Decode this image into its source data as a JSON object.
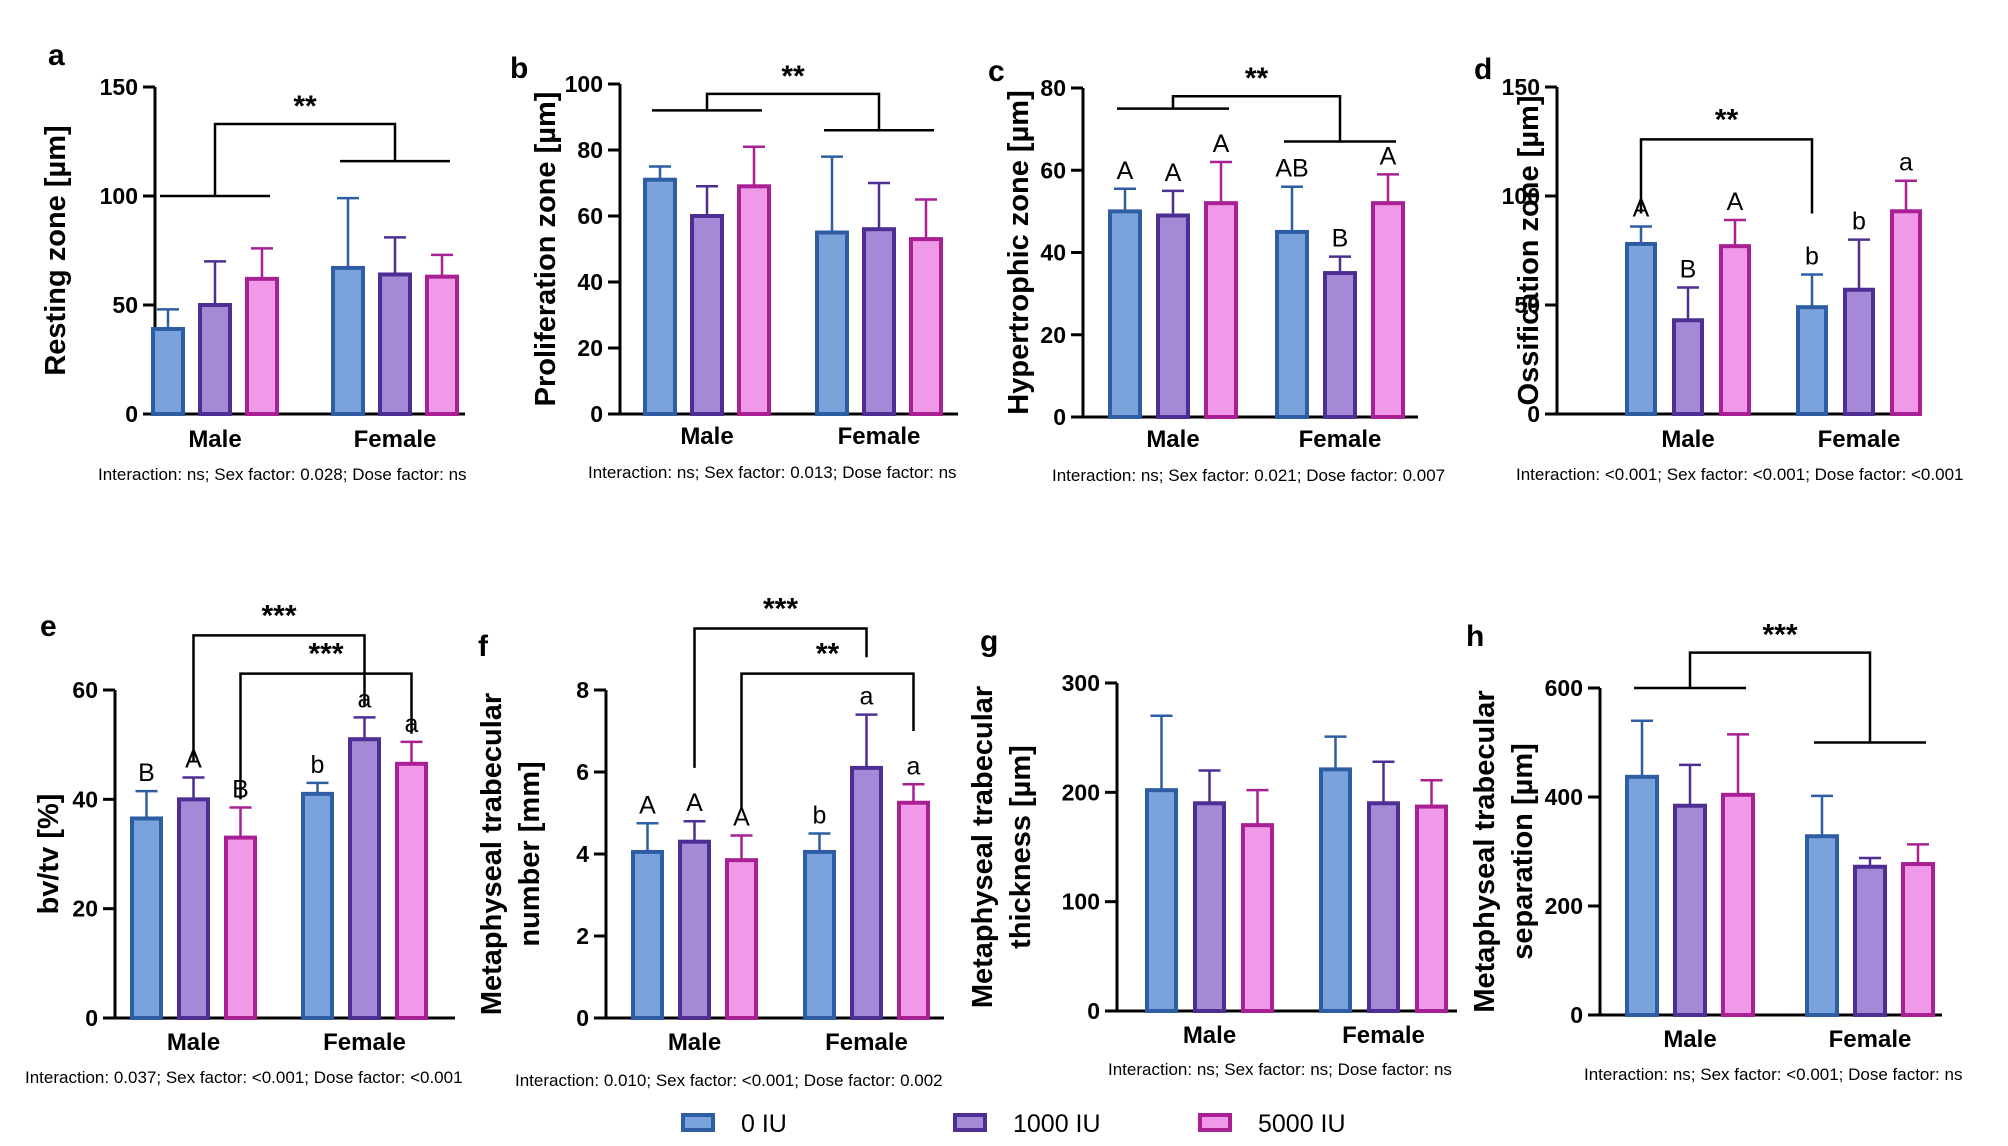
{
  "legend": [
    {
      "label": "0 IU",
      "fill": "#7ba3db",
      "stroke": "#2e5da3"
    },
    {
      "label": "1000 IU",
      "fill": "#a48ad6",
      "stroke": "#4f2e94"
    },
    {
      "label": "5000 IU",
      "fill": "#ef99e8",
      "stroke": "#a82093"
    }
  ],
  "chart_data": [
    {
      "panel": "a",
      "type": "bar",
      "ylabel": "Resting zone [µm]",
      "ylim": [
        0,
        150
      ],
      "yticks": [
        0,
        50,
        100,
        150
      ],
      "categories": [
        "Male",
        "Female"
      ],
      "series": [
        {
          "name": "0 IU",
          "values": [
            39,
            67
          ],
          "errors": [
            9,
            32
          ]
        },
        {
          "name": "1000 IU",
          "values": [
            50,
            64
          ],
          "errors": [
            20,
            17
          ]
        },
        {
          "name": "5000 IU",
          "values": [
            62,
            63
          ],
          "errors": [
            14,
            10
          ]
        }
      ],
      "letters": [
        [
          "",
          "",
          ""
        ],
        [
          "",
          "",
          ""
        ]
      ],
      "significance": [
        {
          "label": "**",
          "type": "groups",
          "y1": 100,
          "y2": 116,
          "top": 133
        }
      ],
      "footnote": "Interaction: ns; Sex factor: 0.028; Dose factor: ns"
    },
    {
      "panel": "b",
      "type": "bar",
      "ylabel": "Proliferation zone [µm]",
      "ylim": [
        0,
        100
      ],
      "yticks": [
        0,
        20,
        40,
        60,
        80,
        100
      ],
      "categories": [
        "Male",
        "Female"
      ],
      "series": [
        {
          "name": "0 IU",
          "values": [
            71,
            55
          ],
          "errors": [
            4,
            23
          ]
        },
        {
          "name": "1000 IU",
          "values": [
            60,
            56
          ],
          "errors": [
            9,
            14
          ]
        },
        {
          "name": "5000 IU",
          "values": [
            69,
            53
          ],
          "errors": [
            12,
            12
          ]
        }
      ],
      "letters": [
        [
          "",
          "",
          ""
        ],
        [
          "",
          "",
          ""
        ]
      ],
      "significance": [
        {
          "label": "**",
          "type": "groups",
          "y1": 92,
          "y2": 86,
          "top": 97
        }
      ],
      "footnote": "Interaction: ns; Sex factor: 0.013; Dose factor: ns"
    },
    {
      "panel": "c",
      "type": "bar",
      "ylabel": "Hypertrophic zone [µm]",
      "ylim": [
        0,
        80
      ],
      "yticks": [
        0,
        20,
        40,
        60,
        80
      ],
      "categories": [
        "Male",
        "Female"
      ],
      "series": [
        {
          "name": "0 IU",
          "values": [
            50,
            45
          ],
          "errors": [
            5.5,
            11
          ]
        },
        {
          "name": "1000 IU",
          "values": [
            49,
            35
          ],
          "errors": [
            6,
            4
          ]
        },
        {
          "name": "5000 IU",
          "values": [
            52,
            52
          ],
          "errors": [
            10,
            7
          ]
        }
      ],
      "letters": [
        [
          "A",
          "A",
          "A"
        ],
        [
          "AB",
          "B",
          "A"
        ]
      ],
      "significance": [
        {
          "label": "**",
          "type": "groups",
          "y1": 75,
          "y2": 67,
          "top": 78
        }
      ],
      "footnote": "Interaction: ns; Sex factor: 0.021; Dose factor: 0.007"
    },
    {
      "panel": "d",
      "type": "bar",
      "ylabel": "Ossification zone [µm]",
      "ylim": [
        0,
        150
      ],
      "yticks": [
        0,
        50,
        100,
        150
      ],
      "categories": [
        "Male",
        "Female"
      ],
      "series": [
        {
          "name": "0 IU",
          "values": [
            78,
            49
          ],
          "errors": [
            8,
            15
          ]
        },
        {
          "name": "1000 IU",
          "values": [
            43,
            57
          ],
          "errors": [
            15,
            23
          ]
        },
        {
          "name": "5000 IU",
          "values": [
            77,
            93
          ],
          "errors": [
            12,
            14
          ]
        }
      ],
      "letters": [
        [
          "A",
          "B",
          "A"
        ],
        [
          "b",
          "b",
          "a"
        ]
      ],
      "significance": [
        {
          "label": "**",
          "type": "bars",
          "from": [
            0,
            0
          ],
          "to": [
            1,
            0
          ],
          "top": 126,
          "b1": 92,
          "b2": 92
        }
      ],
      "footnote": "Interaction: <0.001; Sex factor: <0.001; Dose factor: <0.001"
    },
    {
      "panel": "e",
      "type": "bar",
      "ylabel": "bv/tv [%]",
      "ylim": [
        0,
        60
      ],
      "yticks": [
        0,
        20,
        40,
        60
      ],
      "categories": [
        "Male",
        "Female"
      ],
      "series": [
        {
          "name": "0 IU",
          "values": [
            36.5,
            41
          ],
          "errors": [
            5,
            2
          ]
        },
        {
          "name": "1000 IU",
          "values": [
            40,
            51
          ],
          "errors": [
            4,
            4
          ]
        },
        {
          "name": "5000 IU",
          "values": [
            33,
            46.5
          ],
          "errors": [
            5.5,
            4
          ]
        }
      ],
      "letters": [
        [
          "B",
          "A",
          "B"
        ],
        [
          "b",
          "a",
          "a"
        ]
      ],
      "significance": [
        {
          "label": "***",
          "type": "bars",
          "from": [
            0,
            1
          ],
          "to": [
            1,
            1
          ],
          "top": 70,
          "b1": 47,
          "b2": 57
        },
        {
          "label": "***",
          "type": "bars",
          "from": [
            0,
            2
          ],
          "to": [
            1,
            2
          ],
          "top": 63,
          "b1": 40,
          "b2": 52
        }
      ],
      "footnote": "Interaction: 0.037; Sex factor: <0.001; Dose factor: <0.001"
    },
    {
      "panel": "f",
      "type": "bar",
      "ylabel": "Metaphyseal trabecular\nnumber [mm]",
      "ylim": [
        0,
        8
      ],
      "yticks": [
        0,
        2,
        4,
        6,
        8
      ],
      "categories": [
        "Male",
        "Female"
      ],
      "series": [
        {
          "name": "0 IU",
          "values": [
            4.05,
            4.05
          ],
          "errors": [
            0.7,
            0.45
          ]
        },
        {
          "name": "1000 IU",
          "values": [
            4.3,
            6.1
          ],
          "errors": [
            0.5,
            1.3
          ]
        },
        {
          "name": "5000 IU",
          "values": [
            3.85,
            5.25
          ],
          "errors": [
            0.6,
            0.45
          ]
        }
      ],
      "letters": [
        [
          "A",
          "A",
          "A"
        ],
        [
          "b",
          "a",
          "a"
        ]
      ],
      "significance": [
        {
          "label": "***",
          "type": "bars",
          "from": [
            0,
            1
          ],
          "to": [
            1,
            1
          ],
          "top": 9.5,
          "b1": 6.1,
          "b2": 8.8
        },
        {
          "label": "**",
          "type": "bars",
          "from": [
            0,
            2
          ],
          "to": [
            1,
            2
          ],
          "top": 8.4,
          "b1": 5.1,
          "b2": 7.0
        }
      ],
      "footnote": "Interaction: 0.010; Sex factor: <0.001; Dose factor: 0.002"
    },
    {
      "panel": "g",
      "type": "bar",
      "ylabel": "Metaphyseal trabecular\nthickness [µm]",
      "ylim": [
        0,
        300
      ],
      "yticks": [
        0,
        100,
        200,
        300
      ],
      "categories": [
        "Male",
        "Female"
      ],
      "series": [
        {
          "name": "0 IU",
          "values": [
            202,
            221
          ],
          "errors": [
            68,
            30
          ]
        },
        {
          "name": "1000 IU",
          "values": [
            190,
            190
          ],
          "errors": [
            30,
            38
          ]
        },
        {
          "name": "5000 IU",
          "values": [
            170,
            187
          ],
          "errors": [
            32,
            24
          ]
        }
      ],
      "letters": [
        [
          "",
          "",
          ""
        ],
        [
          "",
          "",
          ""
        ]
      ],
      "significance": [],
      "footnote": "Interaction: ns; Sex factor: ns; Dose factor: ns"
    },
    {
      "panel": "h",
      "type": "bar",
      "ylabel": "Metaphyseal  trabecular\nseparation [µm]",
      "ylim": [
        0,
        600
      ],
      "yticks": [
        0,
        200,
        400,
        600
      ],
      "categories": [
        "Male",
        "Female"
      ],
      "series": [
        {
          "name": "0 IU",
          "values": [
            437,
            328
          ],
          "errors": [
            103,
            74
          ]
        },
        {
          "name": "1000 IU",
          "values": [
            384,
            272
          ],
          "errors": [
            75,
            16
          ]
        },
        {
          "name": "5000 IU",
          "values": [
            404,
            277
          ],
          "errors": [
            111,
            36
          ]
        }
      ],
      "letters": [
        [
          "",
          "",
          ""
        ],
        [
          "",
          "",
          ""
        ]
      ],
      "significance": [
        {
          "label": "***",
          "type": "groups",
          "y1": 600,
          "y2": 500,
          "top": 665
        }
      ],
      "footnote": "Interaction: ns; Sex factor: <0.001; Dose factor: ns"
    }
  ]
}
